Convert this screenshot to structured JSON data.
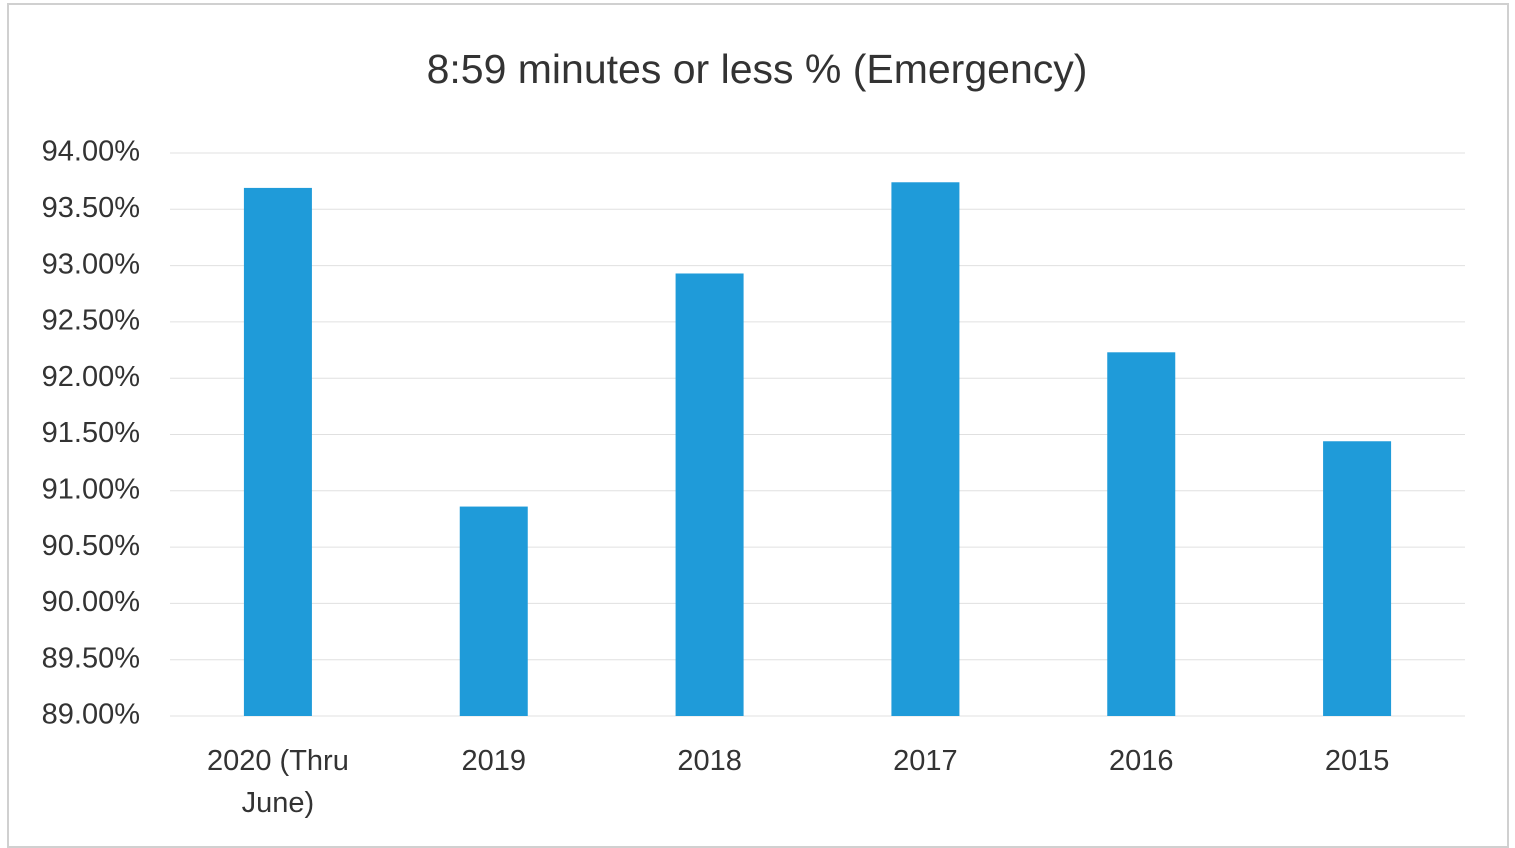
{
  "chart_data": {
    "type": "bar",
    "title": "8:59 minutes or less % (Emergency)",
    "categories": [
      "2020 (Thru June)",
      "2019",
      "2018",
      "2017",
      "2016",
      "2015"
    ],
    "values": [
      93.69,
      90.86,
      92.93,
      93.74,
      92.23,
      91.44
    ],
    "color": "#1f9bd9",
    "ylim": [
      89,
      94
    ],
    "yticks": [
      {
        "value": 89,
        "label": "89.00%"
      },
      {
        "value": 89.5,
        "label": "89.50%"
      },
      {
        "value": 90,
        "label": "90.00%"
      },
      {
        "value": 90.5,
        "label": "90.50%"
      },
      {
        "value": 91,
        "label": "91.00%"
      },
      {
        "value": 91.5,
        "label": "91.50%"
      },
      {
        "value": 92,
        "label": "92.00%"
      },
      {
        "value": 92.5,
        "label": "92.50%"
      },
      {
        "value": 93,
        "label": "93.00%"
      },
      {
        "value": 93.5,
        "label": "93.50%"
      },
      {
        "value": 94,
        "label": "94.00%"
      }
    ],
    "grid": true
  }
}
